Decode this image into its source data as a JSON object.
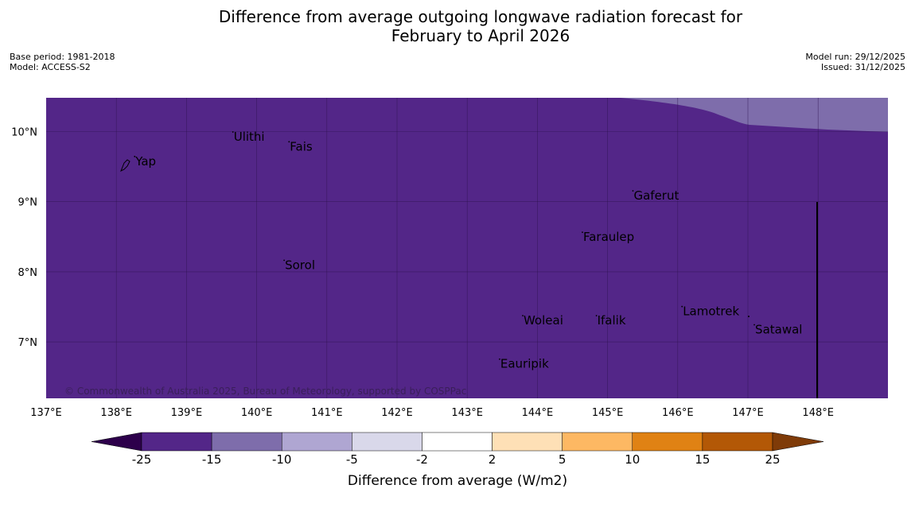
{
  "title": {
    "line1": "Difference from average outgoing longwave radiation forecast for",
    "line2": "February to April 2026"
  },
  "meta": {
    "base_period": "Base period: 1981-2018",
    "model": "Model: ACCESS-S2",
    "model_run": "Model run: 29/12/2025",
    "issued": "Issued: 31/12/2025"
  },
  "map": {
    "lon_range": [
      137,
      149
    ],
    "lat_range": [
      6.2,
      10.5
    ],
    "background_color": "#532688",
    "anomaly_color": "#7e6dab",
    "lon_ticks": [
      "137°E",
      "138°E",
      "139°E",
      "140°E",
      "141°E",
      "142°E",
      "143°E",
      "144°E",
      "145°E",
      "146°E",
      "147°E",
      "148°E"
    ],
    "lat_ticks": [
      "10°N",
      "9°N",
      "8°N",
      "7°N"
    ],
    "places": [
      {
        "name": "Yap",
        "lon": 138.25,
        "lat": 9.52
      },
      {
        "name": "Ulithi",
        "lon": 139.65,
        "lon_label": 139.65,
        "lat": 9.87
      },
      {
        "name": "Fais",
        "lon": 140.45,
        "lat": 9.73
      },
      {
        "name": "Gaferut",
        "lon": 145.35,
        "lat": 9.03
      },
      {
        "name": "Faraulep",
        "lon": 144.63,
        "lat": 8.44
      },
      {
        "name": "Sorol",
        "lon": 140.38,
        "lat": 8.04
      },
      {
        "name": "Lamotrek",
        "lon": 146.05,
        "lat": 7.38
      },
      {
        "name": "Woleai",
        "lon": 143.78,
        "lat": 7.25
      },
      {
        "name": "Ifalik",
        "lon": 144.83,
        "lat": 7.25
      },
      {
        "name": "Satawal",
        "lon": 147.08,
        "lat": 7.12
      },
      {
        "name": "Eauripik",
        "lon": 143.45,
        "lat": 6.63
      }
    ],
    "copyright": "© Commonwealth of Australia 2025, Bureau of Meteorology, supported by COSPPac"
  },
  "colorbar": {
    "label": "Difference from average (W/m2)",
    "tick_labels": [
      "-25",
      "-15",
      "-10",
      "-5",
      "-2",
      "2",
      "5",
      "10",
      "15",
      "25"
    ],
    "colors": [
      "#532688",
      "#7e6dab",
      "#afa6d2",
      "#d9d8ea",
      "#ffffff",
      "#fee0b6",
      "#fdb863",
      "#e08214",
      "#b35806"
    ],
    "under_color": "#2d004b",
    "over_color": "#7f3b08"
  }
}
